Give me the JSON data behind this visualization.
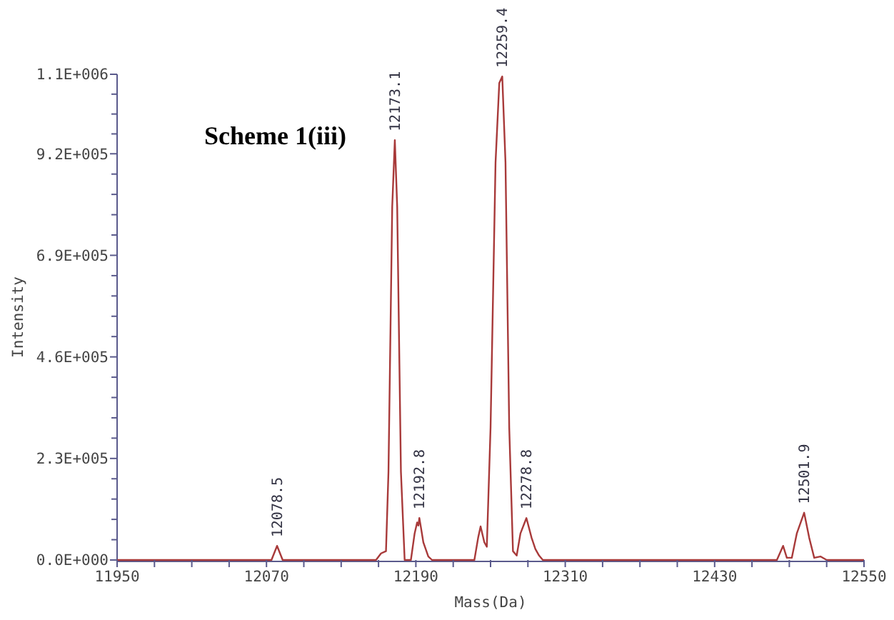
{
  "chart_data": {
    "type": "line",
    "title": "Scheme 1(iii)",
    "xlabel": "Mass(Da)",
    "ylabel": "Intensity",
    "xlim": [
      11950,
      12550
    ],
    "xticks": [
      11950,
      {
        "value": 11980,
        "label": null
      },
      {
        "value": 12010,
        "label": null
      },
      {
        "value": 12040,
        "label": null
      },
      12070,
      {
        "value": 12100,
        "label": null
      },
      {
        "value": 12130,
        "label": null
      },
      {
        "value": 12160,
        "label": null
      },
      12190,
      {
        "value": 12220,
        "label": null
      },
      {
        "value": 12250,
        "label": null
      },
      {
        "value": 12280,
        "label": null
      },
      12310,
      {
        "value": 12340,
        "label": null
      },
      {
        "value": 12370,
        "label": null
      },
      {
        "value": 12400,
        "label": null
      },
      12430,
      {
        "value": 12460,
        "label": null
      },
      {
        "value": 12490,
        "label": null
      },
      {
        "value": 12520,
        "label": null
      },
      12550
    ],
    "ylim": [
      0,
      1100000
    ],
    "yticks": [
      {
        "value": 0,
        "label": "0.0E+000"
      },
      {
        "value": 46000,
        "label": null
      },
      {
        "value": 92000,
        "label": null
      },
      {
        "value": 138000,
        "label": null
      },
      {
        "value": 184000,
        "label": null
      },
      {
        "value": 230000,
        "label": "2.3E+005"
      },
      {
        "value": 276000,
        "label": null
      },
      {
        "value": 322000,
        "label": null
      },
      {
        "value": 368000,
        "label": null
      },
      {
        "value": 414000,
        "label": null
      },
      {
        "value": 460000,
        "label": "4.6E+005"
      },
      {
        "value": 506000,
        "label": null
      },
      {
        "value": 552000,
        "label": null
      },
      {
        "value": 598000,
        "label": null
      },
      {
        "value": 644000,
        "label": null
      },
      {
        "value": 690000,
        "label": "6.9E+005"
      },
      {
        "value": 736000,
        "label": null
      },
      {
        "value": 782000,
        "label": null
      },
      {
        "value": 828000,
        "label": null
      },
      {
        "value": 874000,
        "label": null
      },
      {
        "value": 920000,
        "label": "9.2E+005"
      },
      {
        "value": 965000,
        "label": null
      },
      {
        "value": 1010000,
        "label": null
      },
      {
        "value": 1055000,
        "label": null
      },
      {
        "value": 1100000,
        "label": "1.1E+006"
      }
    ],
    "grid": false,
    "marker": "none",
    "line_style": "solid",
    "series": [
      {
        "color": "#a83a3a",
        "x": [
          11950,
          12070,
          12074,
          12078.5,
          12083,
          12158,
          12162,
          12166,
          12168,
          12171,
          12173.1,
          12175,
          12178,
          12181,
          12186,
          12189,
          12191,
          12192,
          12192.8,
          12194,
          12196,
          12200,
          12203,
          12237,
          12240,
          12242,
          12245,
          12247,
          12250,
          12254,
          12257,
          12259.4,
          12262,
          12265,
          12268,
          12271,
          12274,
          12278.8,
          12283,
          12286,
          12289,
          12292,
          12480,
          12485,
          12488,
          12492,
          12496,
          12501.9,
          12506,
          12510,
          12515,
          12520,
          12550
        ],
        "values": [
          0,
          0,
          0,
          32000,
          0,
          0,
          15000,
          20000,
          200000,
          800000,
          951000,
          800000,
          200000,
          0,
          0,
          60000,
          85000,
          78000,
          95000,
          75000,
          40000,
          8000,
          0,
          0,
          50000,
          76000,
          40000,
          30000,
          300000,
          900000,
          1080000,
          1095000,
          900000,
          300000,
          20000,
          10000,
          60000,
          95000,
          50000,
          25000,
          10000,
          0,
          0,
          32000,
          5000,
          5000,
          60000,
          107000,
          50000,
          5000,
          8000,
          0,
          0
        ]
      }
    ],
    "annotations": [
      {
        "text": "12078.5",
        "x": 12078.5,
        "y": 32000
      },
      {
        "text": "12173.1",
        "x": 12173.1,
        "y": 951000
      },
      {
        "text": "12192.8",
        "x": 12192.8,
        "y": 95000
      },
      {
        "text": "12259.4",
        "x": 12259.4,
        "y": 1095000
      },
      {
        "text": "12278.8",
        "x": 12278.8,
        "y": 95000
      },
      {
        "text": "12501.9",
        "x": 12501.9,
        "y": 107000
      }
    ]
  }
}
